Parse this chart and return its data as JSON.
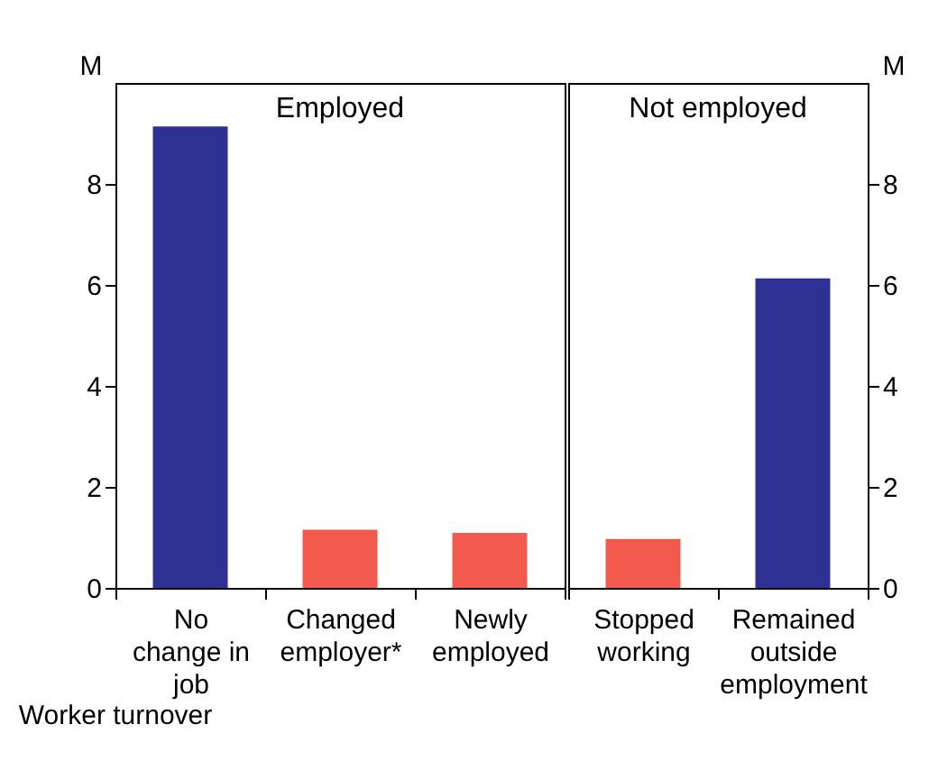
{
  "chart_data": [
    {
      "type": "bar",
      "title": "Employed",
      "xlabel": "Worker turnover",
      "ylabel": "M",
      "categories": [
        "No\nchange in\njob",
        "Changed\nemployer*",
        "Newly\nemployed"
      ],
      "values": [
        9.14,
        1.15,
        1.09
      ],
      "colors": [
        "#2e3192",
        "#f15a4c",
        "#f15a4c"
      ],
      "ylim": [
        0,
        10
      ],
      "yticks": [
        0,
        2,
        4,
        6,
        8
      ],
      "grid": false
    },
    {
      "type": "bar",
      "title": "Not employed",
      "y2label": "M",
      "categories": [
        "Stopped\nworking",
        "Remained\noutside\nemployment"
      ],
      "series": [
        {
          "values": [
            0.97,
            6.13
          ],
          "axis": "y2"
        }
      ],
      "colors": [
        "#f15a4c",
        "#2e3192"
      ],
      "y2lim": [
        0,
        10
      ],
      "y2ticks": [
        0,
        2,
        4,
        6,
        8
      ],
      "grid": false
    }
  ]
}
